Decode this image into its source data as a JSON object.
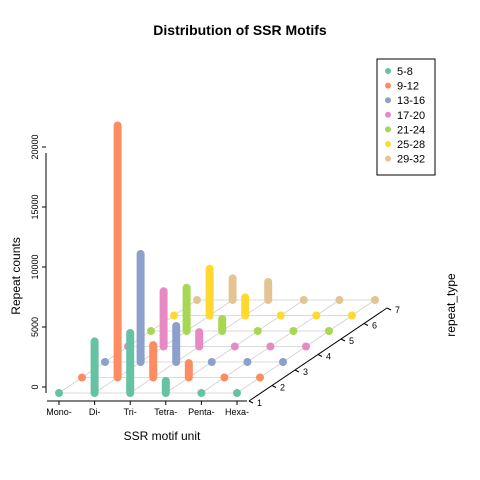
{
  "chart_data": {
    "type": "bar",
    "style": "3d-scatter-histogram",
    "title": "Distribution of SSR Motifs",
    "xlabel": "SSR motif unit",
    "ylabel": "Repeat counts",
    "zlabel": "repeat_type",
    "categories": [
      "Mono-",
      "Di-",
      "Tri-",
      "Tetra-",
      "Penta-",
      "Hexa-"
    ],
    "depth_ticks": [
      "1",
      "2",
      "3",
      "4",
      "5",
      "6",
      "7"
    ],
    "yticks": [
      "0",
      "5000",
      "10000",
      "15000",
      "20000"
    ],
    "ylim": [
      0,
      20000
    ],
    "grid": true,
    "legend_position": "top-right",
    "series": [
      {
        "name": "5-8",
        "color": "#66C2A5",
        "values": [
          0,
          4300,
          5000,
          1000,
          0,
          0
        ]
      },
      {
        "name": "9-12",
        "color": "#FC8D62",
        "values": [
          0,
          21000,
          2700,
          1200,
          0,
          0
        ]
      },
      {
        "name": "13-16",
        "color": "#8DA0CB",
        "values": [
          0,
          9000,
          3000,
          0,
          0,
          0
        ]
      },
      {
        "name": "17-20",
        "color": "#E78AC3",
        "values": [
          0,
          4600,
          1200,
          0,
          0,
          0
        ]
      },
      {
        "name": "21-24",
        "color": "#A6D854",
        "values": [
          0,
          3600,
          1000,
          0,
          0,
          0
        ]
      },
      {
        "name": "25-28",
        "color": "#FFD92F",
        "values": [
          0,
          3900,
          1500,
          0,
          0,
          0
        ]
      },
      {
        "name": "29-32",
        "color": "#E5C494",
        "values": [
          0,
          1800,
          1500,
          0,
          0,
          0
        ]
      }
    ]
  }
}
